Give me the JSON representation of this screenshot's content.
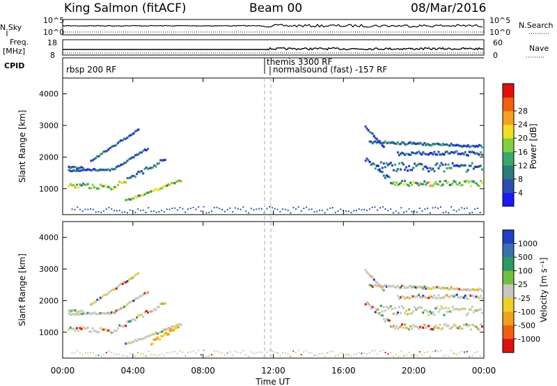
{
  "header": {
    "station": "King Salmon (fitACF)",
    "beam": "Beam 00",
    "date": "08/Mar/2016"
  },
  "top_panels": {
    "nsky_label": "N.Sky",
    "nsearch_label": "N.Search",
    "nave_label": "Nave",
    "freq_label_line1": "Freq.",
    "freq_label_line2": "[MHz]",
    "cpid_label": "CPID",
    "left_ticks_a": [
      "10^5",
      "10^0"
    ],
    "right_ticks_a": [
      "10^5",
      "10^0"
    ],
    "left_ticks_b": [
      "18",
      "8"
    ],
    "right_ticks_b": [
      "60",
      "0"
    ],
    "cpid_segments": [
      "rbsp 200 RF",
      "themis 3300 RF",
      "normalsound (fast) -157 RF"
    ]
  },
  "chart_data": [
    {
      "type": "heatmap",
      "quantity": "power",
      "ylabel": "Slant Range [km]",
      "xlabel": "",
      "ylim": [
        180,
        4500
      ],
      "yticks": [
        1000,
        2000,
        3000,
        4000
      ],
      "colorbar_label": "Power [dB]",
      "colorbar_ticks": [
        "4",
        "8",
        "12",
        "16",
        "20",
        "24",
        "28"
      ],
      "colorbar_colors": [
        "#1a1aff",
        "#2a4fb0",
        "#2a7d7a",
        "#3aa86a",
        "#80d040",
        "#f0e020",
        "#f5a020",
        "#f06010",
        "#e01010"
      ]
    },
    {
      "type": "heatmap",
      "quantity": "velocity",
      "ylabel": "Slant Range [km]",
      "xlabel": "Time UT",
      "ylim": [
        180,
        4500
      ],
      "yticks": [
        1000,
        2000,
        3000,
        4000
      ],
      "xlim": [
        0,
        24
      ],
      "xticks": [
        "00:00",
        "04:00",
        "08:00",
        "12:00",
        "16:00",
        "20:00",
        "00:00"
      ],
      "colorbar_label": "Velocity [m s⁻¹]",
      "colorbar_ticks": [
        "1000",
        "500",
        "100",
        "25",
        "-25",
        "-100",
        "-500",
        "-1000"
      ],
      "colorbar_colors": [
        "#2040c0",
        "#3a70b0",
        "#2a9a60",
        "#70c040",
        "#c8c8c0",
        "#f0d020",
        "#f0a020",
        "#f06010",
        "#e01010"
      ]
    }
  ]
}
